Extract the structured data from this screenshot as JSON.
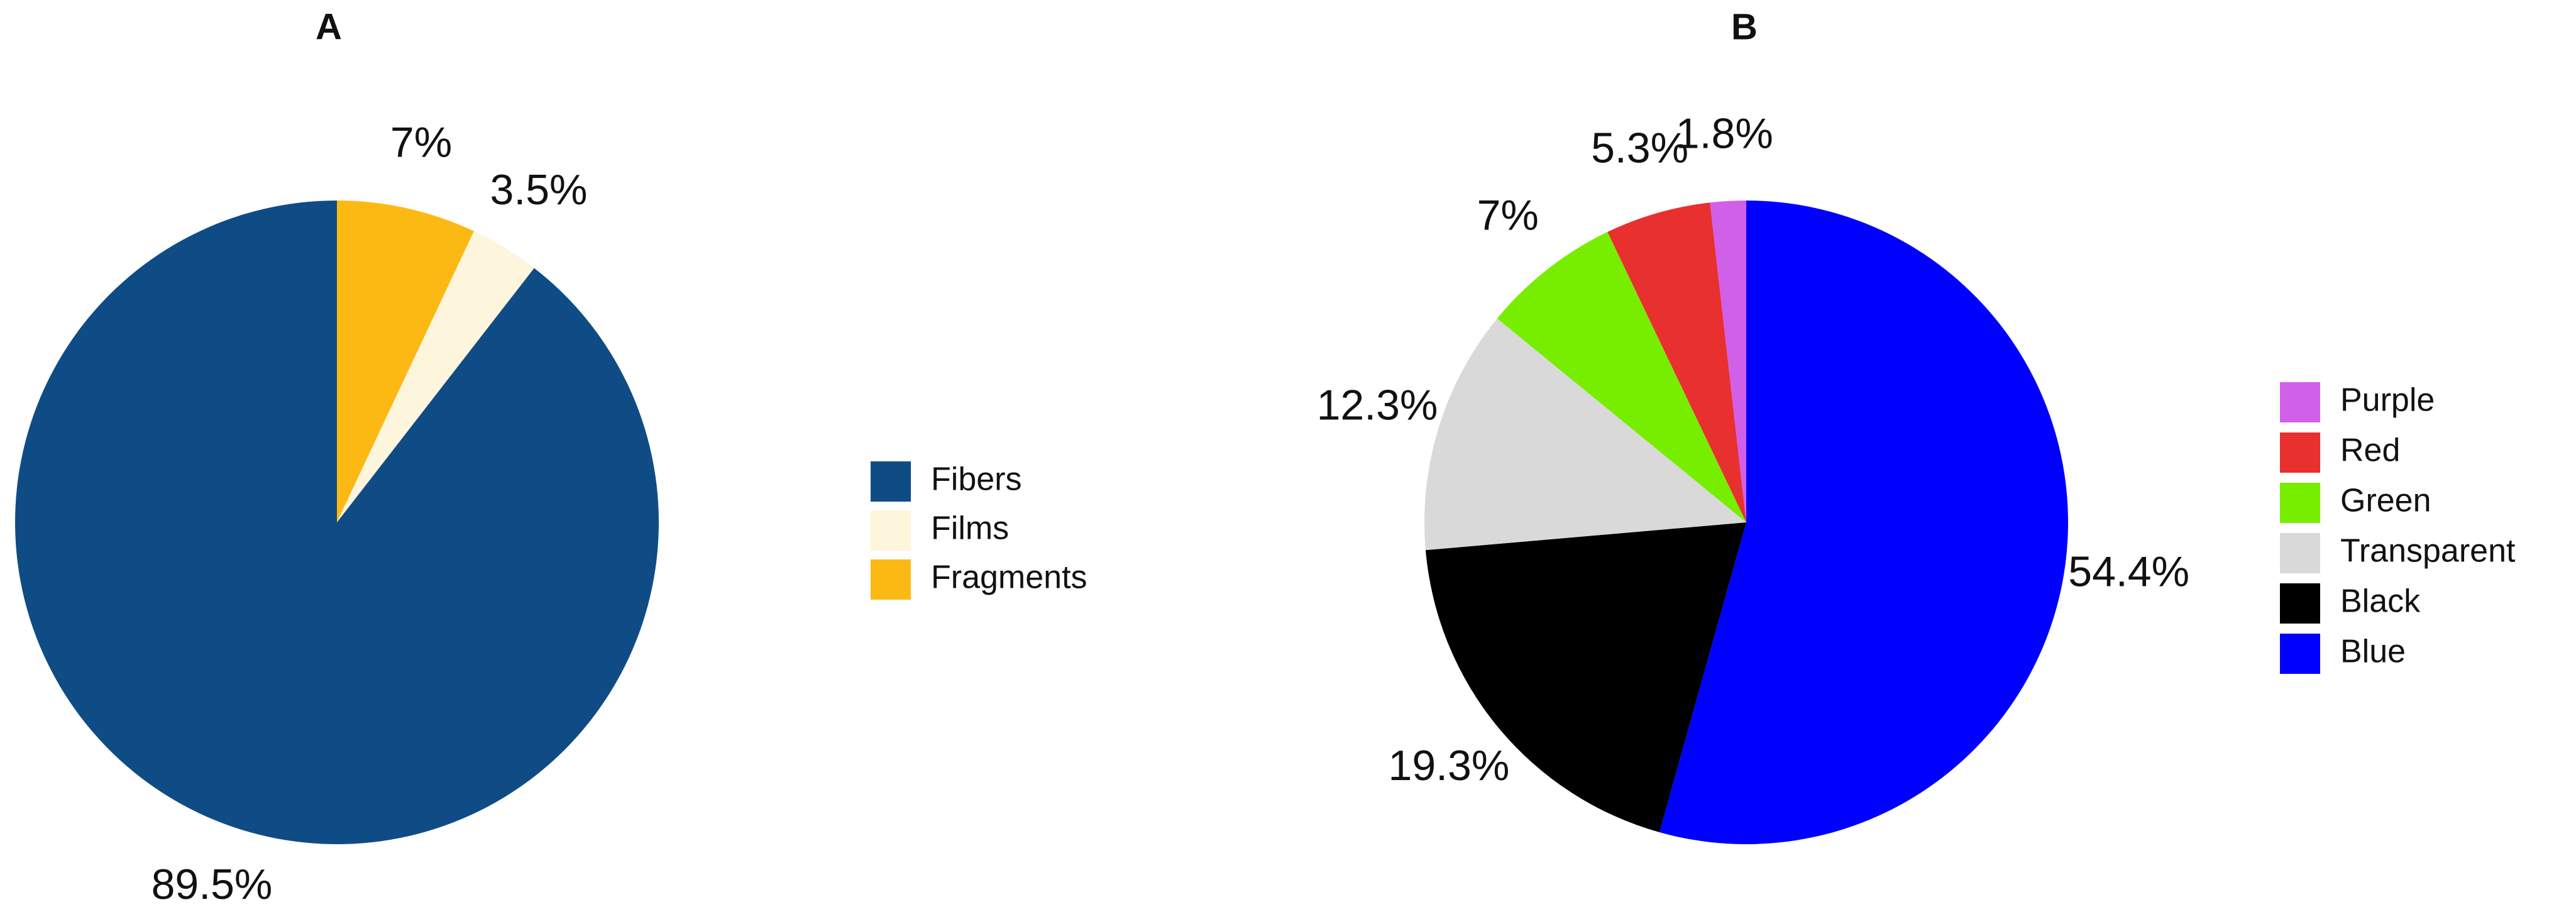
{
  "chart_data": [
    {
      "type": "pie",
      "title": "A",
      "categories": [
        "Fibers",
        "Films",
        "Fragments"
      ],
      "values": [
        89.5,
        3.5,
        7
      ],
      "value_labels": [
        "89.5%",
        "3.5%",
        "7%"
      ],
      "colors": [
        "#0f4c85",
        "#fdf5dc",
        "#fdb913"
      ],
      "legend": "right"
    },
    {
      "type": "pie",
      "title": "B",
      "categories": [
        "Purple",
        "Red",
        "Green",
        "Transparent",
        "Black",
        "Blue"
      ],
      "values": [
        1.8,
        5.3,
        7,
        12.3,
        19.3,
        54.4
      ],
      "value_labels": [
        "1.8%",
        "5.3%",
        "7%",
        "12.3%",
        "19.3%",
        "54.4%"
      ],
      "colors": [
        "#d160e8",
        "#e8302e",
        "#77ee00",
        "#d9d9d9",
        "#000000",
        "#0000ff"
      ],
      "legend": "right"
    }
  ]
}
